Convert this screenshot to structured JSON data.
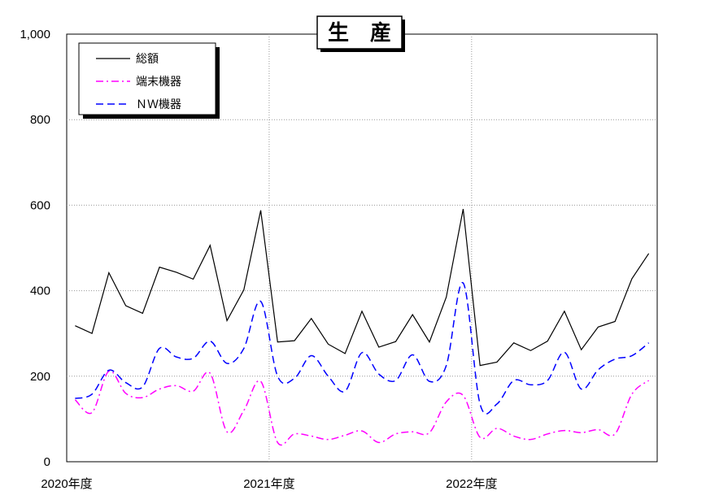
{
  "chart_data": {
    "type": "line",
    "title": "生　産",
    "xlabel": "",
    "ylabel": "",
    "ylim": [
      0,
      1000
    ],
    "yticks": [
      "0",
      "200",
      "400",
      "600",
      "800",
      "1,000"
    ],
    "xtick_labels": [
      "2020年度",
      "2021年度",
      "2022年度"
    ],
    "grid": "dotted",
    "legend_position": "top-left",
    "series": [
      {
        "name": "総額",
        "color": "#000000",
        "style": "solid",
        "values": [
          318,
          300,
          442,
          365,
          347,
          455,
          443,
          427,
          506,
          330,
          402,
          588,
          280,
          283,
          335,
          275,
          253,
          352,
          268,
          281,
          344,
          280,
          385,
          591,
          225,
          233,
          278,
          260,
          282,
          352,
          262,
          315,
          328,
          428,
          487
        ]
      },
      {
        "name": "端末機器",
        "color": "#ff00ff",
        "style": "dashdot",
        "values": [
          145,
          115,
          212,
          160,
          150,
          170,
          178,
          165,
          207,
          70,
          120,
          188,
          45,
          65,
          60,
          52,
          62,
          72,
          45,
          65,
          70,
          68,
          140,
          155,
          57,
          78,
          60,
          52,
          65,
          73,
          68,
          75,
          65,
          158,
          190
        ]
      },
      {
        "name": "ＮＷ機器",
        "color": "#0000ff",
        "style": "dashed",
        "values": [
          148,
          158,
          214,
          185,
          175,
          265,
          245,
          242,
          282,
          230,
          265,
          375,
          200,
          195,
          248,
          200,
          165,
          255,
          205,
          190,
          250,
          188,
          225,
          418,
          135,
          135,
          190,
          180,
          190,
          256,
          170,
          215,
          240,
          248,
          278
        ]
      }
    ]
  }
}
